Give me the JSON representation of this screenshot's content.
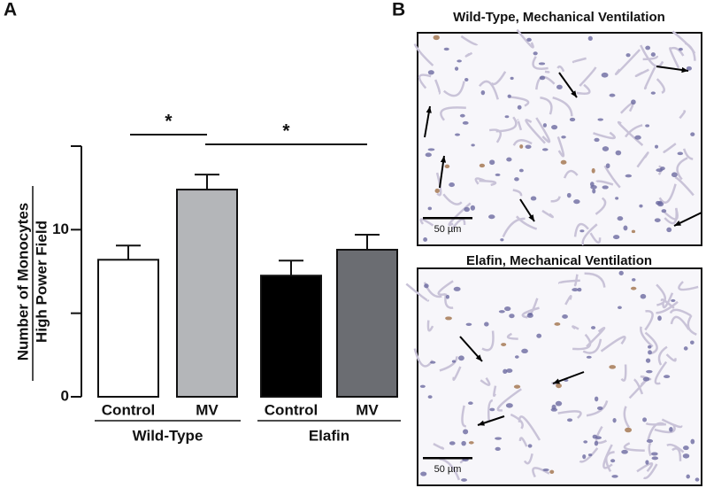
{
  "chart_data": {
    "type": "bar",
    "panel_label": "A",
    "ylabel": [
      "Number of Monocytes",
      "High Power Field"
    ],
    "categories": [
      "Control",
      "MV",
      "Control",
      "MV"
    ],
    "groups": [
      "Wild-Type",
      "Wild-Type",
      "Elafin",
      "Elafin"
    ],
    "values": [
      8.2,
      12.4,
      7.25,
      8.8
    ],
    "errors": [
      0.85,
      0.9,
      0.9,
      0.9
    ],
    "colors": [
      "#ffffff",
      "#b4b6b9",
      "#000000",
      "#6b6d72"
    ],
    "ylim": [
      0,
      15
    ],
    "yticks": [
      0,
      10
    ],
    "minor_yticks": [
      5,
      15
    ],
    "comparisons": [
      {
        "label": "*",
        "between": [
          0,
          1
        ]
      },
      {
        "label": "*",
        "between": [
          1,
          3
        ]
      }
    ]
  },
  "images": {
    "panel_label": "B",
    "panels": [
      {
        "title": "Wild-Type, Mechanical Ventilation",
        "scale_bar": "50 µm"
      },
      {
        "title": "Elafin, Mechanical Ventilation",
        "scale_bar": "50 µm"
      }
    ]
  }
}
